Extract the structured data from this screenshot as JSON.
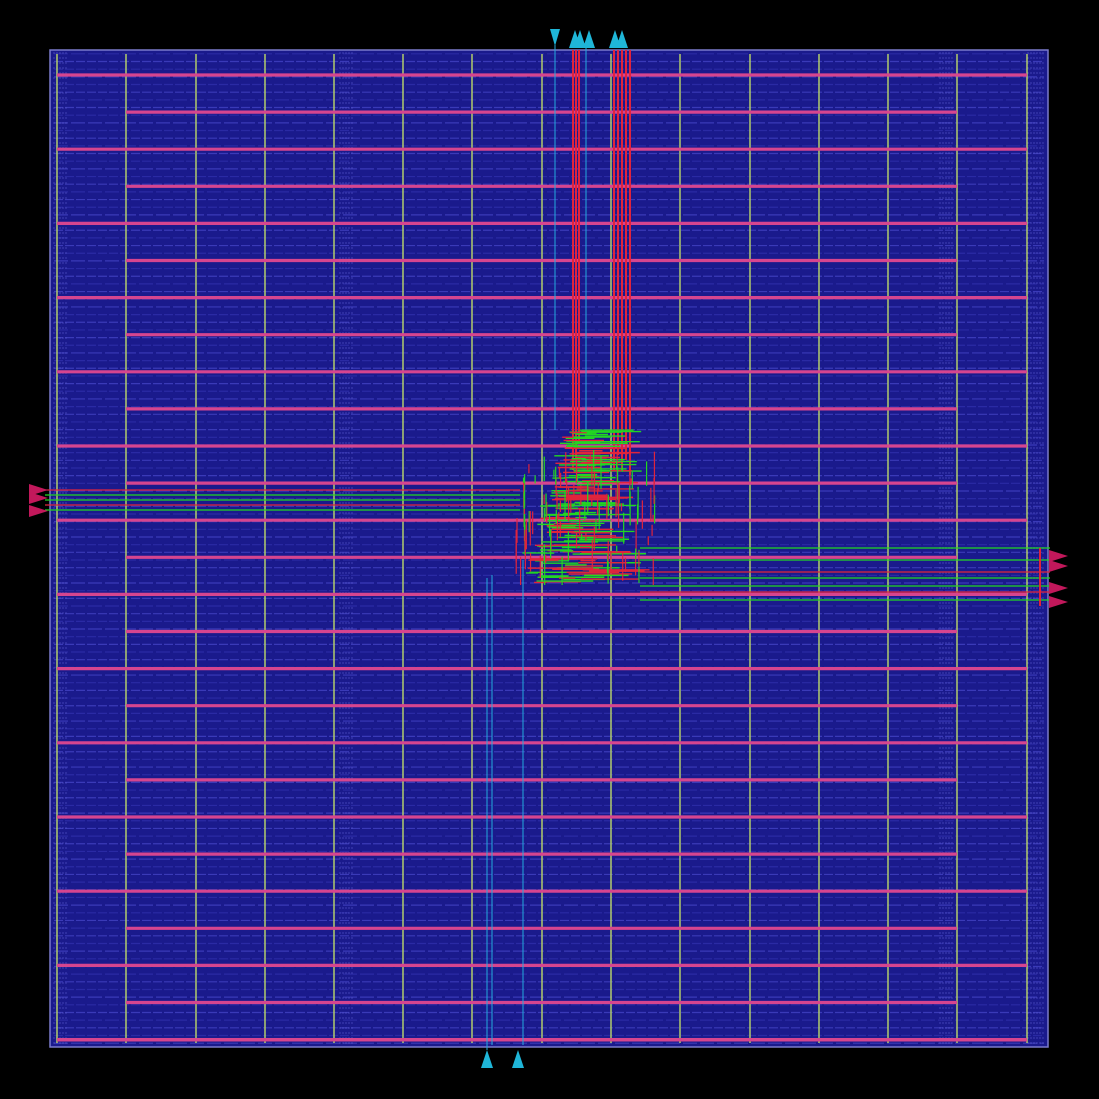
{
  "canvas": {
    "background": "#000000",
    "die_fill": "#1a1a8c",
    "die_border": "#7a7acc"
  },
  "colors": {
    "row_stripe": "#3a3ab8",
    "row_stripe_alt": "#2a2aa4",
    "power_rail_h": "#d6458f",
    "power_rail_v": "#b8d46a",
    "signal_red": "#e0243c",
    "signal_green": "#22d622",
    "signal_cyan": "#22aadd",
    "pin_cyan": "#1fb6d8",
    "pin_magenta": "#c2185b"
  },
  "die": {
    "rows": 130,
    "h_power_rails": 27,
    "v_power_rails": 15
  },
  "pins": {
    "top": [
      {
        "id": "t0",
        "dir": "down"
      },
      {
        "id": "t1",
        "dir": "up"
      },
      {
        "id": "t2",
        "dir": "up"
      },
      {
        "id": "t3",
        "dir": "up"
      },
      {
        "id": "t4",
        "dir": "up"
      },
      {
        "id": "t5",
        "dir": "up"
      }
    ],
    "bottom": [
      {
        "id": "b0",
        "dir": "up"
      },
      {
        "id": "b1",
        "dir": "up"
      }
    ],
    "left": [
      {
        "id": "l0",
        "dir": "right"
      },
      {
        "id": "l1",
        "dir": "right"
      },
      {
        "id": "l2",
        "dir": "right"
      }
    ],
    "right": [
      {
        "id": "r0",
        "dir": "right"
      },
      {
        "id": "r1",
        "dir": "right"
      },
      {
        "id": "r2",
        "dir": "right"
      },
      {
        "id": "r3",
        "dir": "right"
      }
    ]
  }
}
